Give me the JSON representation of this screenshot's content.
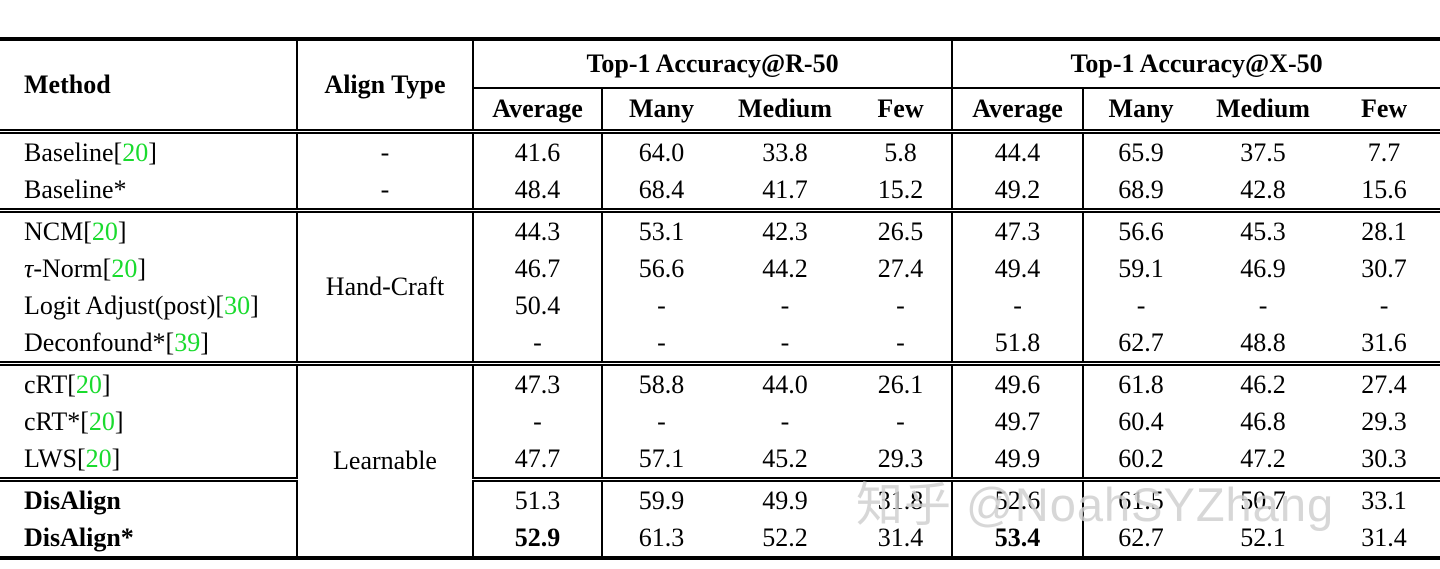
{
  "colors": {
    "citation_green": "#1adb2e",
    "text": "#000000",
    "watermark": "rgba(208,208,208,0.85)"
  },
  "watermark": {
    "text": "知乎 @NoahSYZhang"
  },
  "table": {
    "header": {
      "method": "Method",
      "align_type": "Align Type",
      "groups": [
        {
          "title": "Top-1 Accuracy@R-50"
        },
        {
          "title": "Top-1 Accuracy@X-50"
        }
      ],
      "subcolumns": [
        "Average",
        "Many",
        "Medium",
        "Few",
        "Average",
        "Many",
        "Medium",
        "Few"
      ]
    },
    "sections": [
      {
        "align_mode": "per-row",
        "rows": [
          {
            "method": {
              "name": "Baseline",
              "cite": "20"
            },
            "align": "-",
            "values": [
              "41.6",
              "64.0",
              "33.8",
              "5.8",
              "44.4",
              "65.9",
              "37.5",
              "7.7"
            ]
          },
          {
            "method": {
              "name": "Baseline",
              "star": true
            },
            "align": "-",
            "values": [
              "48.4",
              "68.4",
              "41.7",
              "15.2",
              "49.2",
              "68.9",
              "42.8",
              "15.6"
            ]
          }
        ]
      },
      {
        "align_mode": "span",
        "align_label": "Hand-Craft",
        "align_rowspan": 4,
        "rows": [
          {
            "method": {
              "name": "NCM",
              "cite": "20"
            },
            "values": [
              "44.3",
              "53.1",
              "42.3",
              "26.5",
              "47.3",
              "56.6",
              "45.3",
              "28.1"
            ]
          },
          {
            "method": {
              "italic_head": "τ",
              "name": "-Norm",
              "cite": "20"
            },
            "values": [
              "46.7",
              "56.6",
              "44.2",
              "27.4",
              "49.4",
              "59.1",
              "46.9",
              "30.7"
            ]
          },
          {
            "method": {
              "name": "Logit Adjust(post)",
              "cite": "30"
            },
            "values": [
              "50.4",
              "-",
              "-",
              "-",
              "-",
              "-",
              "-",
              "-"
            ]
          },
          {
            "method": {
              "name": "Deconfound",
              "star": true,
              "cite": "39"
            },
            "values": [
              "-",
              "-",
              "-",
              "-",
              "51.8",
              "62.7",
              "48.8",
              "31.6"
            ]
          }
        ]
      },
      {
        "align_mode": "span",
        "align_label": "Learnable",
        "align_rowspan": 5,
        "rows": [
          {
            "method": {
              "name": "cRT",
              "cite": "20"
            },
            "values": [
              "47.3",
              "58.8",
              "44.0",
              "26.1",
              "49.6",
              "61.8",
              "46.2",
              "27.4"
            ]
          },
          {
            "method": {
              "name": "cRT",
              "star": true,
              "cite": "20"
            },
            "values": [
              "-",
              "-",
              "-",
              "-",
              "49.7",
              "60.4",
              "46.8",
              "29.3"
            ]
          },
          {
            "method": {
              "name": "LWS",
              "cite": "20"
            },
            "values": [
              "47.7",
              "57.1",
              "45.2",
              "29.3",
              "49.9",
              "60.2",
              "47.2",
              "30.3"
            ]
          }
        ]
      },
      {
        "align_mode": "none",
        "rows": [
          {
            "method": {
              "name": "DisAlign",
              "bold": true
            },
            "values": [
              "51.3",
              "59.9",
              "49.9",
              "31.8",
              "52.6",
              "61.5",
              "50.7",
              "33.1"
            ]
          },
          {
            "method": {
              "name": "DisAlign",
              "star": true,
              "bold": true
            },
            "values": [
              "52.9",
              "61.3",
              "52.2",
              "31.4",
              "53.4",
              "62.7",
              "52.1",
              "31.4"
            ],
            "bold_values": [
              0,
              4
            ]
          }
        ]
      }
    ]
  }
}
